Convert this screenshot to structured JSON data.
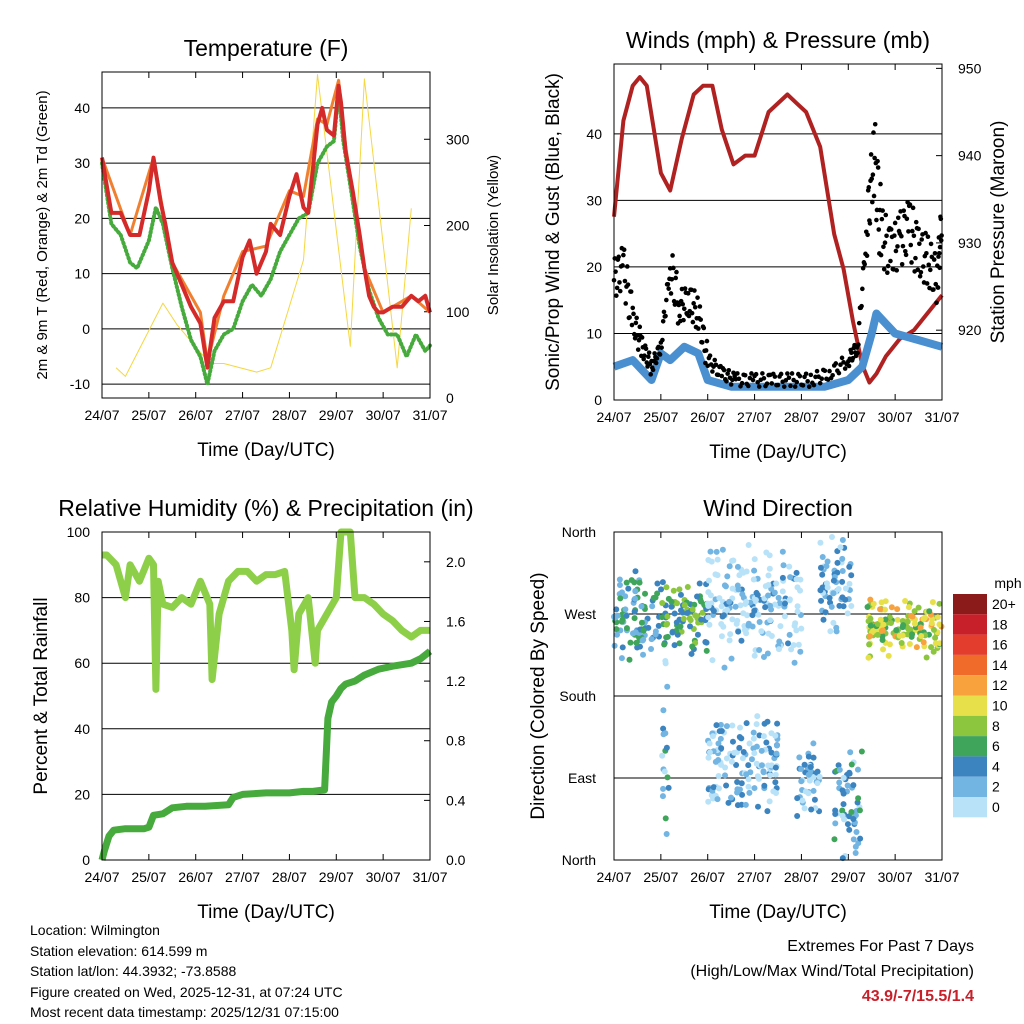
{
  "chart_data": [
    {
      "type": "line",
      "title": "Temperature (F)",
      "xlabel": "Time (Day/UTC)",
      "ylabel": "2m & 9m T (Red, Orange) & 2m Td (Green)",
      "ylabel_right": "Solar Insolation (Yellow)",
      "x_ticks": [
        "24/07",
        "25/07",
        "26/07",
        "27/07",
        "28/07",
        "29/07",
        "30/07",
        "31/07"
      ],
      "x_range_days": [
        0,
        7
      ],
      "ylim": [
        -12.5,
        46.5
      ],
      "y_ticks": [
        -10,
        0,
        10,
        20,
        30,
        40
      ],
      "ylim_right": [
        0,
        378
      ],
      "y_ticks_right": [
        0,
        100,
        200,
        300
      ],
      "grid": "horizontal",
      "series": [
        {
          "name": "2m T",
          "color": "#d42a2a",
          "x": [
            0,
            0.2,
            0.4,
            0.6,
            0.8,
            1.0,
            1.1,
            1.25,
            1.35,
            1.5,
            1.7,
            1.9,
            2.1,
            2.25,
            2.4,
            2.6,
            2.8,
            3.0,
            3.15,
            3.3,
            3.5,
            3.6,
            3.8,
            4.0,
            4.15,
            4.3,
            4.4,
            4.5,
            4.6,
            4.7,
            4.8,
            4.95,
            5.05,
            5.1,
            5.2,
            5.35,
            5.5,
            5.6,
            5.7,
            5.8,
            5.9,
            6.0,
            6.2,
            6.4,
            6.6,
            6.75,
            6.9,
            7.0
          ],
          "y": [
            31,
            21,
            21,
            17,
            17,
            25,
            31,
            23,
            19,
            12,
            8,
            4,
            1,
            -7,
            2,
            5,
            5,
            13,
            16,
            10,
            14,
            19,
            17,
            24,
            28,
            22,
            21,
            29,
            37,
            40,
            36,
            35,
            44,
            41,
            32,
            25,
            17,
            11,
            6,
            4,
            3,
            3,
            4,
            4,
            6,
            5,
            6,
            3
          ]
        },
        {
          "name": "9m T",
          "color": "#f08030",
          "x": [
            0,
            0.6,
            1.1,
            1.5,
            2.1,
            2.25,
            2.6,
            3.0,
            3.5,
            4.0,
            4.3,
            4.6,
            4.8,
            5.05,
            5.2,
            5.6,
            6.0,
            6.6,
            7.0
          ],
          "y": [
            31,
            17,
            31,
            12,
            3,
            -6,
            6,
            14,
            15,
            25,
            24,
            38,
            37,
            45,
            33,
            11,
            3,
            6,
            3
          ]
        },
        {
          "name": "2m Td",
          "color": "#46aa3c",
          "x": [
            0,
            0.2,
            0.4,
            0.6,
            0.75,
            0.9,
            1.0,
            1.15,
            1.3,
            1.5,
            1.7,
            1.9,
            2.1,
            2.25,
            2.4,
            2.6,
            2.8,
            3.0,
            3.2,
            3.4,
            3.6,
            3.8,
            4.0,
            4.2,
            4.4,
            4.6,
            4.8,
            4.95,
            5.05,
            5.15,
            5.3,
            5.5,
            5.7,
            5.9,
            6.1,
            6.3,
            6.5,
            6.7,
            6.9,
            7.0
          ],
          "y": [
            30,
            19,
            17,
            12,
            11,
            14,
            16,
            22,
            19,
            11,
            4,
            -2,
            -5,
            -10,
            -4,
            -1,
            0,
            5,
            8,
            6,
            9,
            14,
            17,
            20,
            21,
            30,
            33,
            34,
            43,
            34,
            26,
            15,
            7,
            2,
            -1,
            -1,
            -5,
            -1,
            -4,
            -3
          ]
        },
        {
          "name": "Solar Insolation",
          "color": "#f5d742",
          "axis": "right",
          "x": [
            0.3,
            0.5,
            1.3,
            1.6,
            2.3,
            2.6,
            3.3,
            3.6,
            4.3,
            4.6,
            5.3,
            5.6,
            6.3,
            6.6
          ],
          "y": [
            35,
            25,
            110,
            85,
            40,
            40,
            30,
            35,
            160,
            375,
            60,
            370,
            35,
            220
          ]
        }
      ]
    },
    {
      "type": "line",
      "title": "Winds (mph) & Pressure (mb)",
      "xlabel": "Time (Day/UTC)",
      "ylabel": "Sonic/Prop Wind & Gust (Blue, Black)",
      "ylabel_right": "Station Pressure (Maroon)",
      "x_ticks": [
        "24/07",
        "25/07",
        "26/07",
        "27/07",
        "28/07",
        "29/07",
        "30/07",
        "31/07"
      ],
      "x_range_days": [
        0,
        7
      ],
      "ylim": [
        0,
        50.5
      ],
      "y_ticks": [
        0,
        10,
        20,
        30,
        40
      ],
      "ylim_right": [
        912,
        950.5
      ],
      "y_ticks_right": [
        920,
        930,
        940,
        950
      ],
      "grid": "horizontal",
      "series": [
        {
          "name": "Wind",
          "color": "#4a90d0",
          "x": [
            0,
            0.4,
            0.8,
            1.0,
            1.2,
            1.5,
            1.8,
            2.0,
            2.5,
            3.0,
            3.5,
            4.0,
            4.5,
            5.0,
            5.3,
            5.5,
            5.6,
            6.0,
            6.5,
            7.0
          ],
          "y": [
            5,
            6,
            3,
            7,
            6,
            8,
            7,
            3,
            2,
            2,
            2,
            2,
            2,
            3,
            5,
            10,
            13,
            10,
            9,
            8
          ]
        },
        {
          "name": "Gust",
          "color": "#000000",
          "x": [
            0,
            0.2,
            0.4,
            0.6,
            0.8,
            1.0,
            1.2,
            1.4,
            1.6,
            1.8,
            2.0,
            2.3,
            2.6,
            3.0,
            3.4,
            3.8,
            4.2,
            4.6,
            5.0,
            5.2,
            5.4,
            5.55,
            5.7,
            5.9,
            6.1,
            6.3,
            6.5,
            6.7,
            6.9,
            7.0
          ],
          "y": [
            18,
            20,
            12,
            8,
            5,
            8,
            20,
            14,
            15,
            13,
            6,
            4,
            3,
            3,
            3,
            3,
            3,
            4,
            6,
            8,
            26,
            37,
            25,
            22,
            24,
            26,
            22,
            21,
            18,
            28
          ]
        },
        {
          "name": "Pressure",
          "color": "#b02222",
          "axis": "right",
          "x": [
            0,
            0.2,
            0.4,
            0.55,
            0.7,
            1.0,
            1.2,
            1.45,
            1.7,
            1.9,
            2.1,
            2.3,
            2.55,
            2.8,
            3.0,
            3.3,
            3.7,
            3.9,
            4.1,
            4.4,
            4.7,
            4.9,
            5.1,
            5.3,
            5.45,
            5.6,
            5.8,
            6.1,
            6.4,
            6.7,
            7.0
          ],
          "y": [
            933,
            944,
            948,
            949,
            948,
            938,
            936,
            942,
            947,
            948,
            948,
            943,
            939,
            940,
            940,
            945,
            947,
            946,
            945,
            941,
            931,
            927,
            921,
            916,
            914,
            915,
            917,
            919,
            920,
            922,
            924
          ]
        }
      ]
    },
    {
      "type": "line",
      "title": "Relative Humidity (%) & Precipitation (in)",
      "xlabel": "Time (Day/UTC)",
      "ylabel": "Percent & Total Rainfall",
      "x_ticks": [
        "24/07",
        "25/07",
        "26/07",
        "27/07",
        "28/07",
        "29/07",
        "30/07",
        "31/07"
      ],
      "x_range_days": [
        0,
        7
      ],
      "ylim": [
        0,
        100
      ],
      "y_ticks": [
        0,
        20,
        40,
        60,
        80,
        100
      ],
      "ylim_right": [
        0,
        2.2
      ],
      "y_ticks_right": [
        "0.0",
        "0.4",
        "0.8",
        "1.2",
        "1.6",
        "2.0"
      ],
      "grid": "horizontal",
      "series": [
        {
          "name": "Relative Humidity",
          "color": "#8ecf4a",
          "x": [
            0,
            0.1,
            0.3,
            0.5,
            0.6,
            0.8,
            1.0,
            1.1,
            1.15,
            1.2,
            1.3,
            1.5,
            1.7,
            1.9,
            2.1,
            2.3,
            2.35,
            2.5,
            2.7,
            2.9,
            3.1,
            3.3,
            3.5,
            3.7,
            3.9,
            4.05,
            4.1,
            4.2,
            4.4,
            4.55,
            4.6,
            4.8,
            5.0,
            5.1,
            5.2,
            5.3,
            5.4,
            5.6,
            5.8,
            6.0,
            6.2,
            6.4,
            6.6,
            6.8,
            7.0
          ],
          "y": [
            93,
            93,
            90,
            80,
            90,
            85,
            92,
            90,
            52,
            85,
            78,
            77,
            80,
            78,
            85,
            78,
            55,
            75,
            85,
            88,
            88,
            85,
            87,
            87,
            88,
            70,
            58,
            75,
            80,
            60,
            70,
            75,
            80,
            100,
            100,
            100,
            80,
            80,
            78,
            75,
            73,
            70,
            68,
            70,
            70
          ]
        },
        {
          "name": "Total Rainfall",
          "color": "#46aa3c",
          "axis": "right",
          "x": [
            0,
            0.05,
            0.15,
            0.25,
            0.5,
            0.9,
            1.0,
            1.1,
            1.3,
            1.5,
            1.8,
            2.2,
            2.7,
            2.8,
            3.0,
            3.5,
            4.0,
            4.3,
            4.5,
            4.75,
            4.82,
            4.9,
            5.0,
            5.1,
            5.2,
            5.4,
            5.6,
            5.9,
            6.2,
            6.6,
            6.8,
            7.0
          ],
          "y": [
            0,
            0.06,
            0.16,
            0.2,
            0.21,
            0.21,
            0.22,
            0.3,
            0.31,
            0.35,
            0.36,
            0.36,
            0.37,
            0.42,
            0.44,
            0.45,
            0.45,
            0.46,
            0.46,
            0.47,
            0.95,
            1.06,
            1.1,
            1.15,
            1.18,
            1.2,
            1.24,
            1.28,
            1.3,
            1.32,
            1.35,
            1.4
          ]
        }
      ]
    },
    {
      "type": "scatter",
      "title": "Wind Direction",
      "xlabel": "Time (Day/UTC)",
      "ylabel": "Direction (Colored By Speed)",
      "x_ticks": [
        "24/07",
        "25/07",
        "26/07",
        "27/07",
        "28/07",
        "29/07",
        "30/07",
        "31/07"
      ],
      "x_range_days": [
        0,
        7
      ],
      "y_ticks": [
        "North",
        "East",
        "South",
        "West",
        "North"
      ],
      "ylim": [
        0,
        360
      ],
      "color_scale_title": "mph",
      "color_scale": [
        {
          "label": "20+",
          "color": "#8b1a1a"
        },
        {
          "label": "18",
          "color": "#c8202a"
        },
        {
          "label": "16",
          "color": "#e23d2d"
        },
        {
          "label": "14",
          "color": "#f06a2a"
        },
        {
          "label": "12",
          "color": "#f8a23d"
        },
        {
          "label": "10",
          "color": "#e8e04a"
        },
        {
          "label": "8",
          "color": "#8cc63f"
        },
        {
          "label": "6",
          "color": "#3fa55a"
        },
        {
          "label": "4",
          "color": "#3c84c0"
        },
        {
          "label": "2",
          "color": "#72b4e2"
        },
        {
          "label": "0",
          "color": "#b8e2f8"
        }
      ],
      "clusters": [
        {
          "x_from": 0.0,
          "x_to": 1.0,
          "dir_center": 270,
          "dir_spread": 55,
          "speed": 4
        },
        {
          "x_from": 1.0,
          "x_to": 2.0,
          "dir_center": 270,
          "dir_spread": 45,
          "speed": 6
        },
        {
          "x_from": 1.0,
          "x_to": 1.2,
          "dir_center": 120,
          "dir_spread": 110,
          "speed": 3
        },
        {
          "x_from": 2.0,
          "x_to": 3.5,
          "dir_center": 110,
          "dir_spread": 60,
          "speed": 2
        },
        {
          "x_from": 2.0,
          "x_to": 4.0,
          "dir_center": 280,
          "dir_spread": 70,
          "speed": 1
        },
        {
          "x_from": 3.9,
          "x_to": 4.4,
          "dir_center": 90,
          "dir_spread": 50,
          "speed": 2
        },
        {
          "x_from": 4.4,
          "x_to": 5.1,
          "dir_center": 300,
          "dir_spread": 60,
          "speed": 2
        },
        {
          "x_from": 4.7,
          "x_to": 5.3,
          "dir_center": 60,
          "dir_spread": 70,
          "speed": 3
        },
        {
          "x_from": 5.4,
          "x_to": 7.0,
          "dir_center": 255,
          "dir_spread": 35,
          "speed": 9
        }
      ]
    }
  ],
  "info": {
    "location": "Location: Wilmington",
    "elevation": "Station elevation: 614.599 m",
    "latlon": "Station lat/lon: 44.3932; -73.8588",
    "created": "Figure created on Wed, 2025-12-31, at 07:24 UTC",
    "timestamp": "Most recent data timestamp: 2025/12/31 07:15:00"
  },
  "extremes": {
    "line1": "Extremes For Past 7 Days",
    "line2": "(High/Low/Max Wind/Total Precipitation)",
    "values": "43.9/-7/15.5/1.4"
  }
}
